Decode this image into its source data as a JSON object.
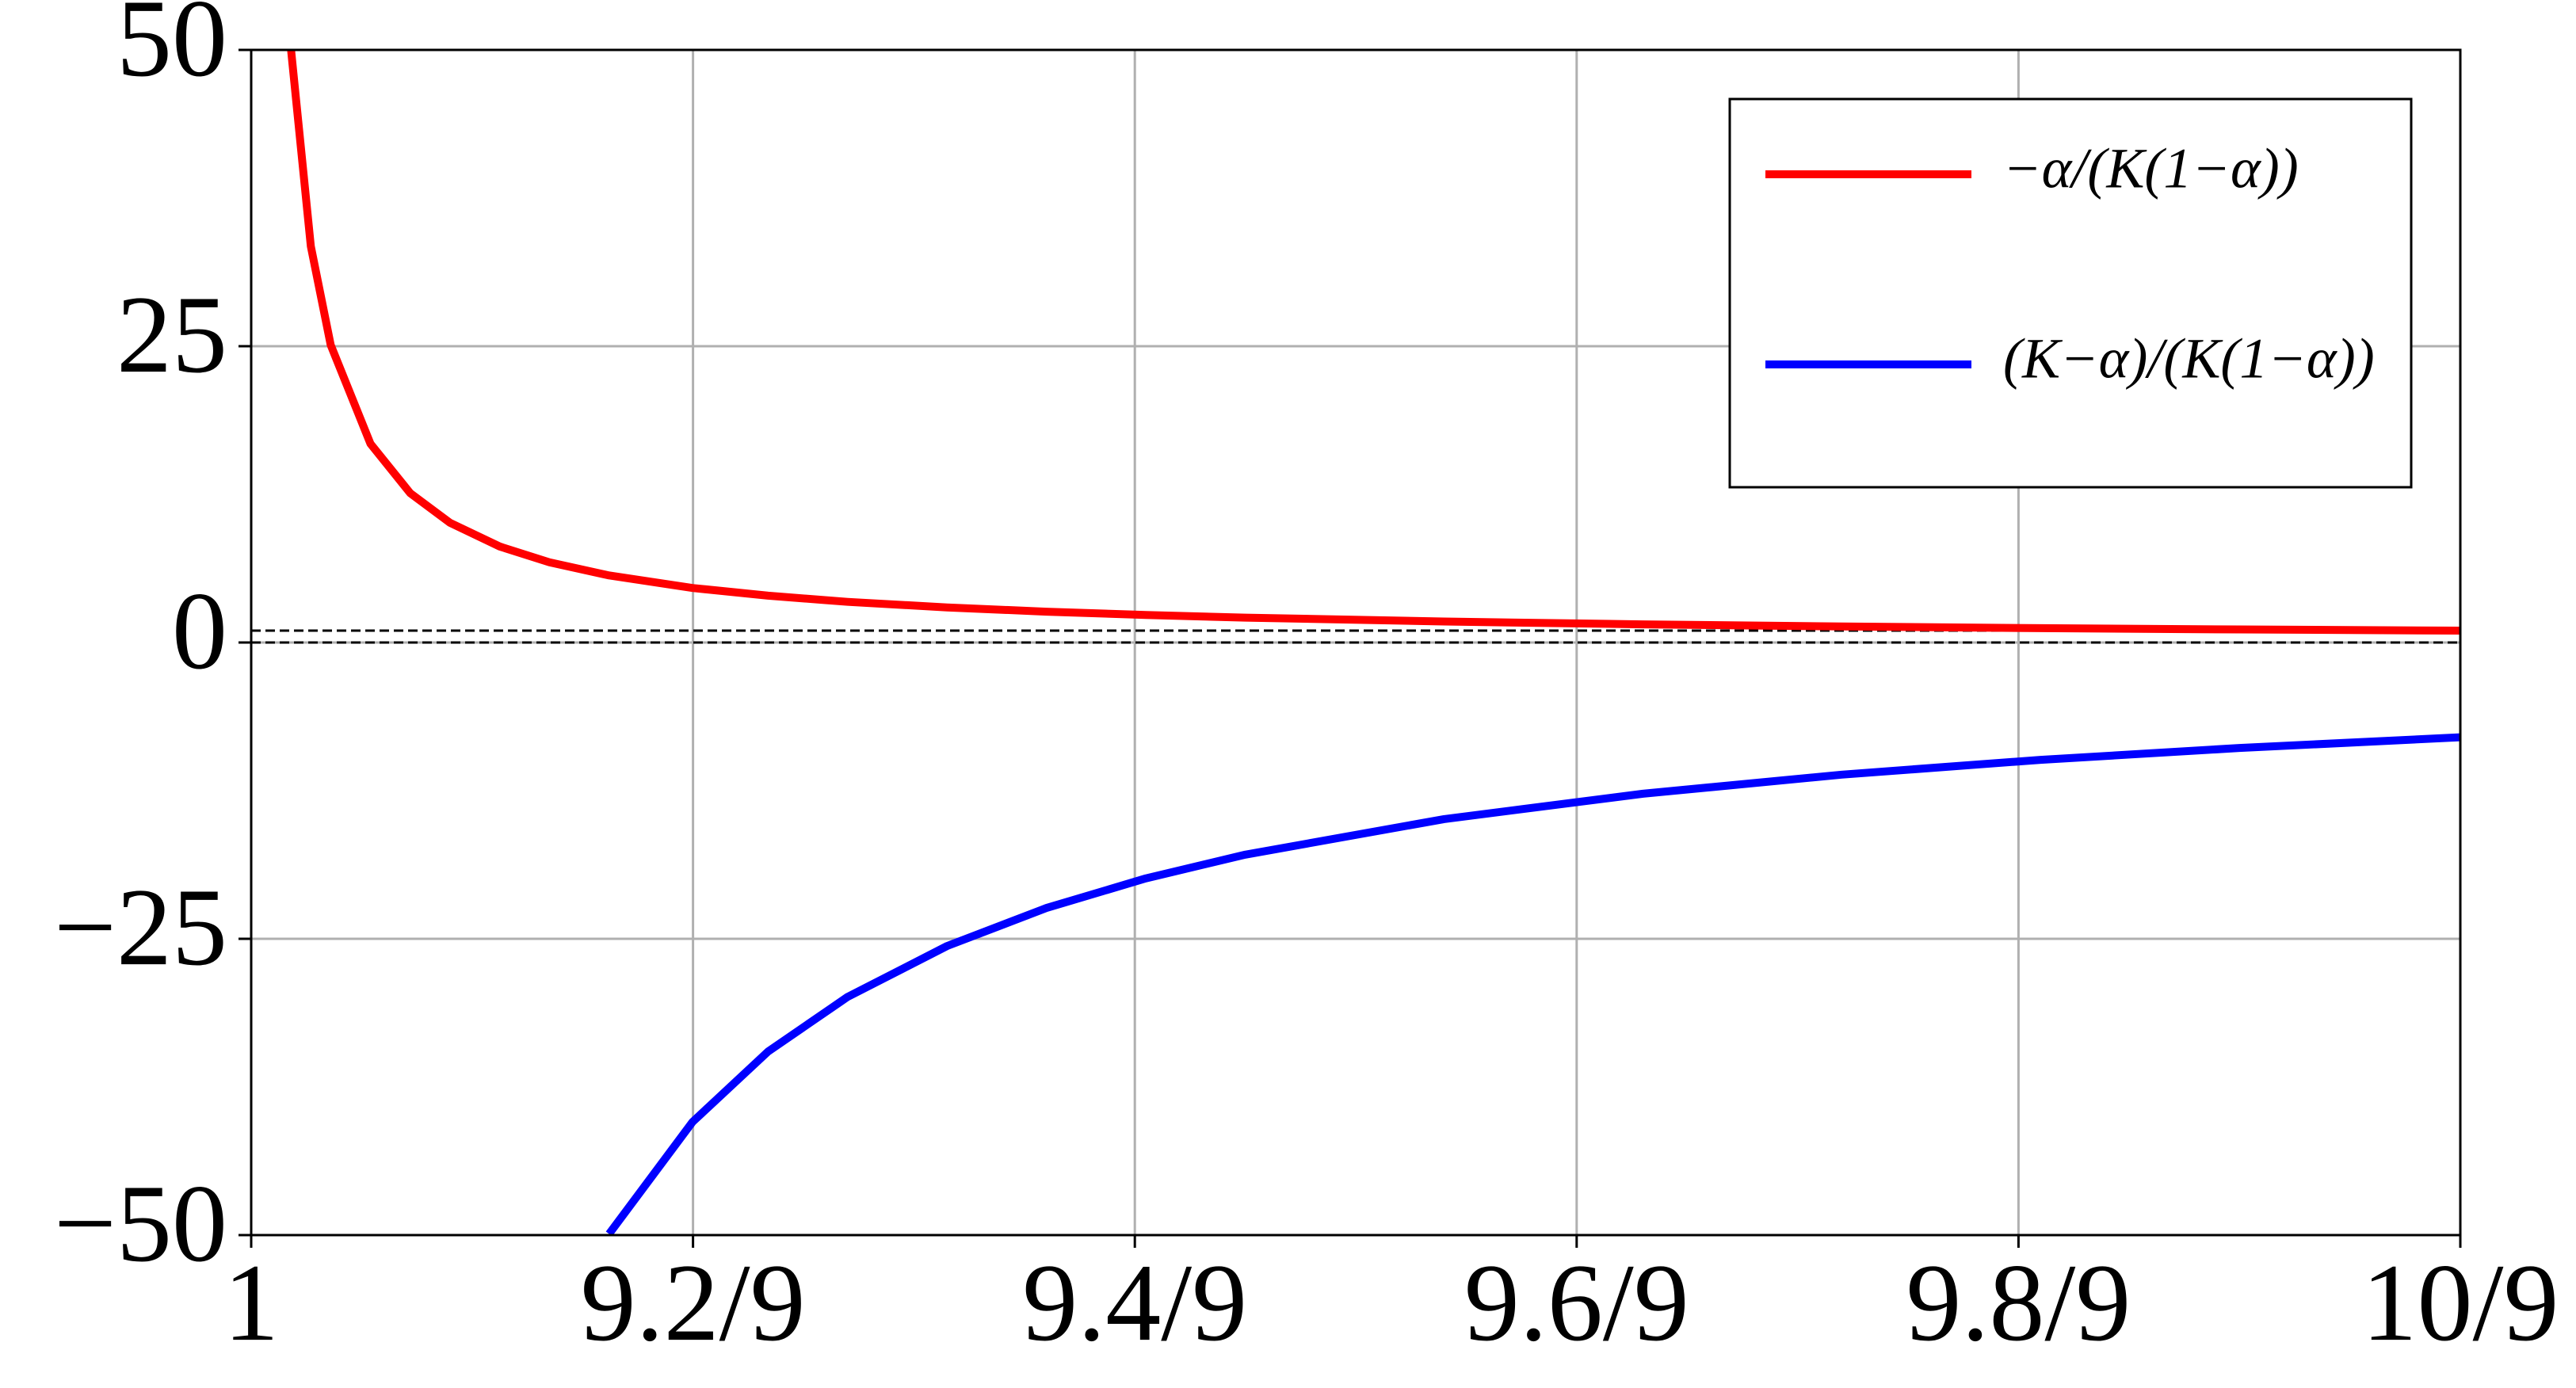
{
  "chart_data": {
    "type": "line",
    "x": [
      1.002,
      1.003,
      1.004,
      1.006,
      1.008,
      1.01,
      1.0125,
      1.015,
      1.018,
      1.0222,
      1.026,
      1.03,
      1.035,
      1.04,
      1.045,
      1.05,
      1.06,
      1.07,
      1.08,
      1.09,
      1.1,
      1.1111
    ],
    "series": [
      {
        "name": "−α/(K(1−α))",
        "color": "#ff0000",
        "values": [
          50.1,
          33.43,
          25.1,
          16.77,
          12.6,
          10.1,
          8.1,
          6.77,
          5.66,
          4.6,
          3.95,
          3.43,
          2.96,
          2.6,
          2.32,
          2.1,
          1.77,
          1.53,
          1.35,
          1.21,
          1.1,
          1.0
        ]
      },
      {
        "name": "(K−α)/(K(1−α))",
        "color": "#0000ff",
        "values": [
          null,
          null,
          null,
          null,
          null,
          null,
          null,
          null,
          -49.9,
          -40.45,
          -34.51,
          -29.9,
          -25.61,
          -22.4,
          -19.9,
          -17.9,
          -14.9,
          -12.76,
          -11.15,
          -9.9,
          -8.9,
          -8.0
        ]
      }
    ],
    "hlines": [
      0,
      1
    ],
    "hline_color": "#000000",
    "xlim": [
      1,
      1.1111111
    ],
    "xticks": [
      1,
      {
        "value": 1.0222222,
        "label": "9.2/9"
      },
      {
        "value": 1.0444444,
        "label": "9.4/9"
      },
      {
        "value": 1.0666667,
        "label": "9.6/9"
      },
      {
        "value": 1.0888889,
        "label": "9.8/9"
      },
      {
        "value": 1.1111111,
        "label": "10/9"
      }
    ],
    "ylim": [
      -50,
      50
    ],
    "yticks": [
      {
        "value": -50,
        "label": "−50"
      },
      {
        "value": -25,
        "label": "−25"
      },
      0,
      25,
      50
    ],
    "grid": true,
    "legend": "upper right"
  }
}
